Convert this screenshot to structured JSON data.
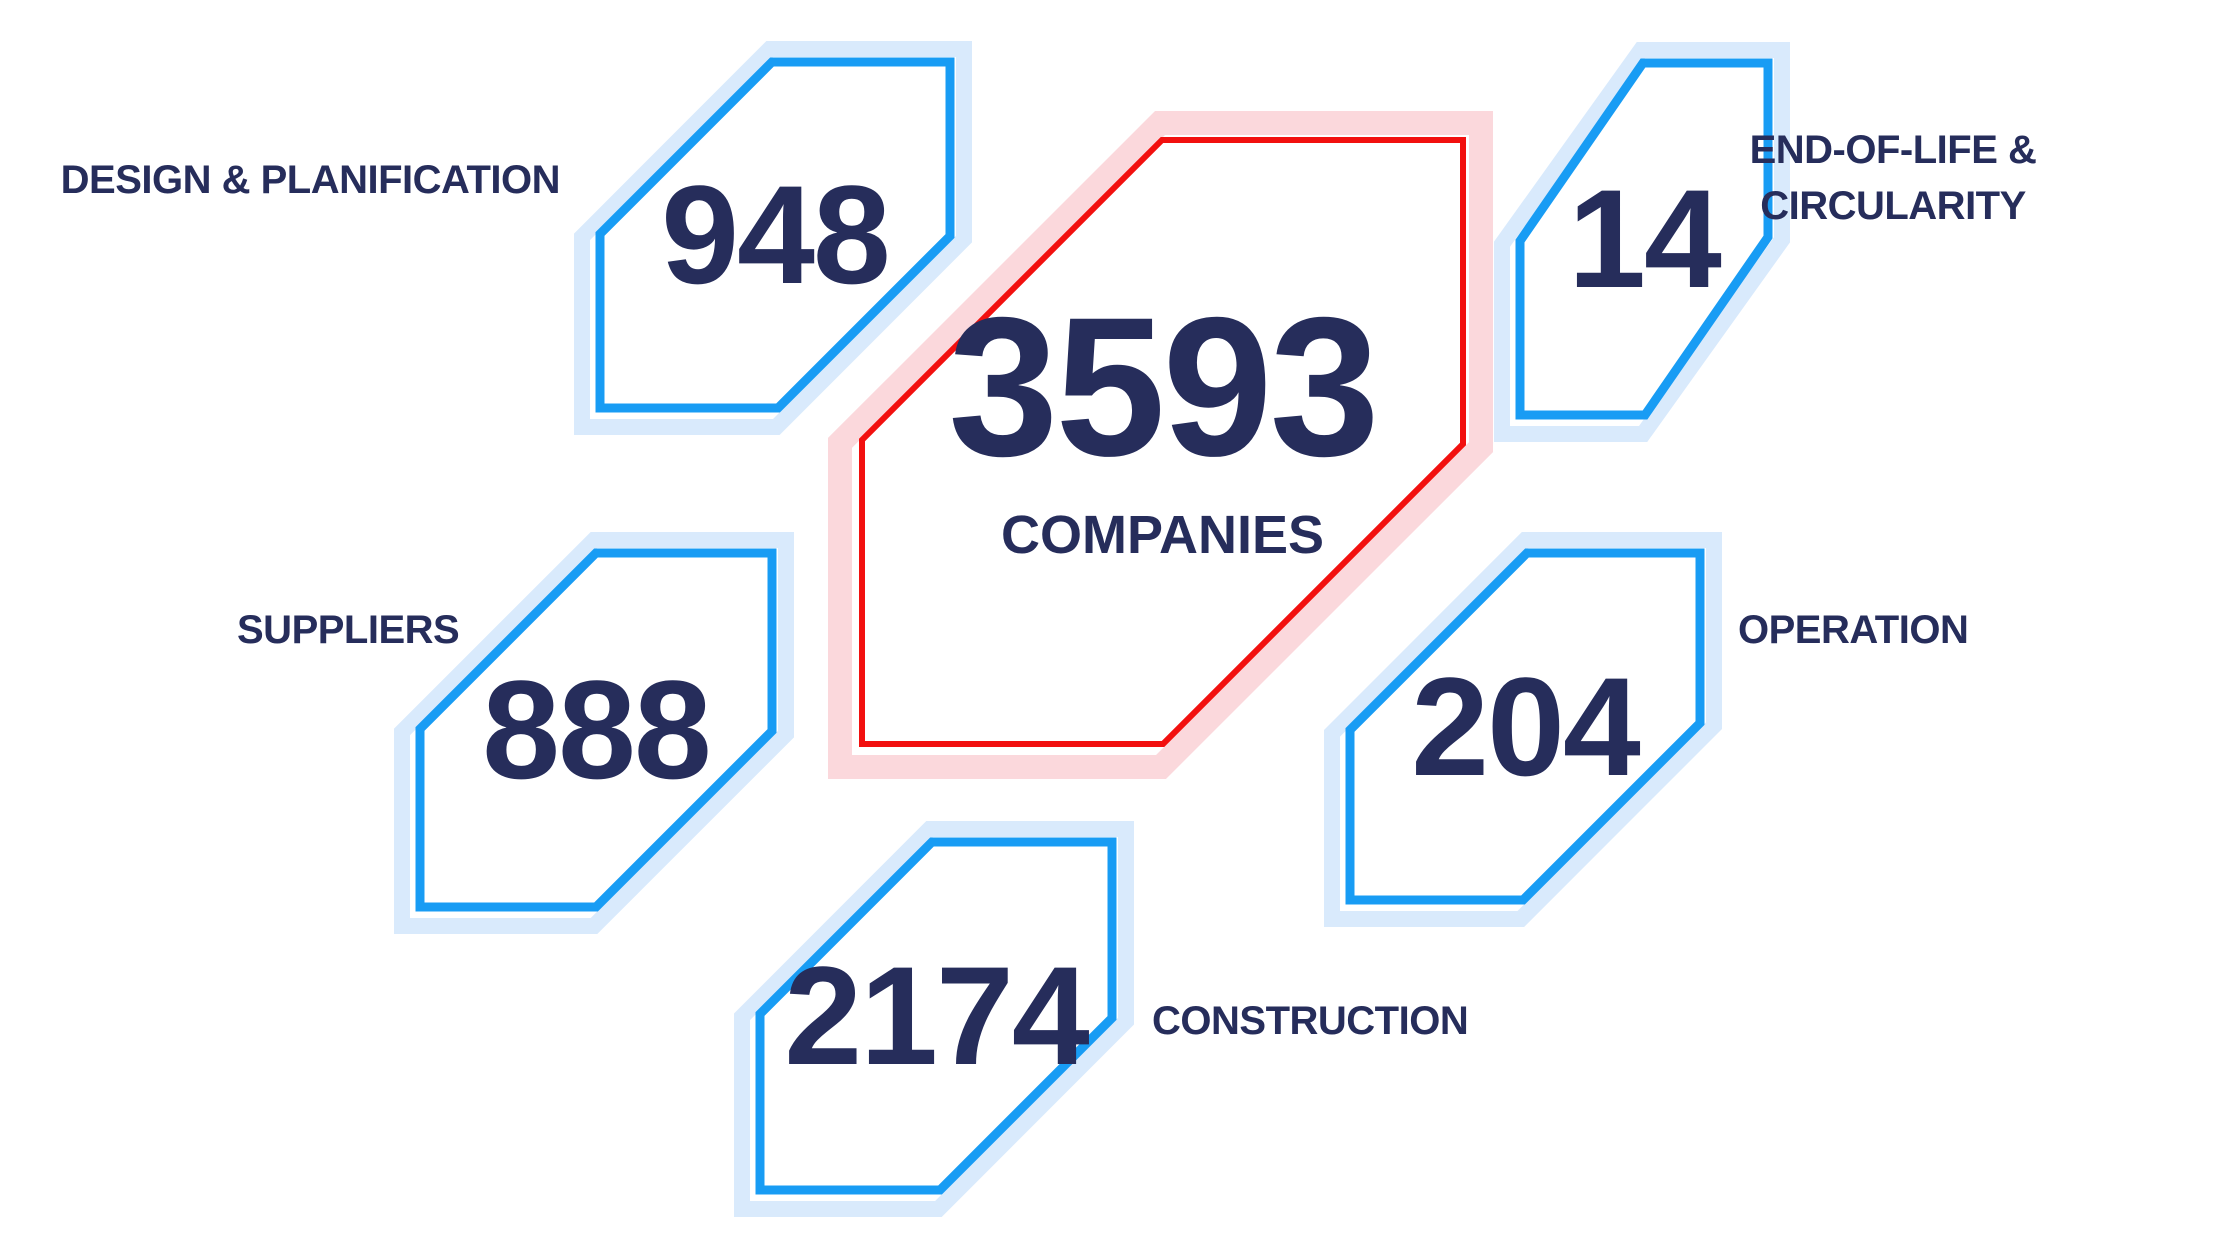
{
  "colors": {
    "accent_blue": "#189CF4",
    "halo_blue": "#D9EAFC",
    "accent_red": "#F2100F",
    "halo_red": "#FBD8DC",
    "text_navy": "#262D5B",
    "background": "#FFFFFF"
  },
  "center": {
    "value": "3593",
    "label": "COMPANIES"
  },
  "nodes": {
    "design": {
      "label": "DESIGN & PLANIFICATION",
      "value": "948"
    },
    "end_of_life": {
      "label_line1": "END-OF-LIFE &",
      "label_line2": "CIRCULARITY",
      "value": "14"
    },
    "suppliers": {
      "label": "SUPPLIERS",
      "value": "888"
    },
    "operation": {
      "label": "OPERATION",
      "value": "204"
    },
    "construction": {
      "label": "CONSTRUCTION",
      "value": "2174"
    }
  }
}
